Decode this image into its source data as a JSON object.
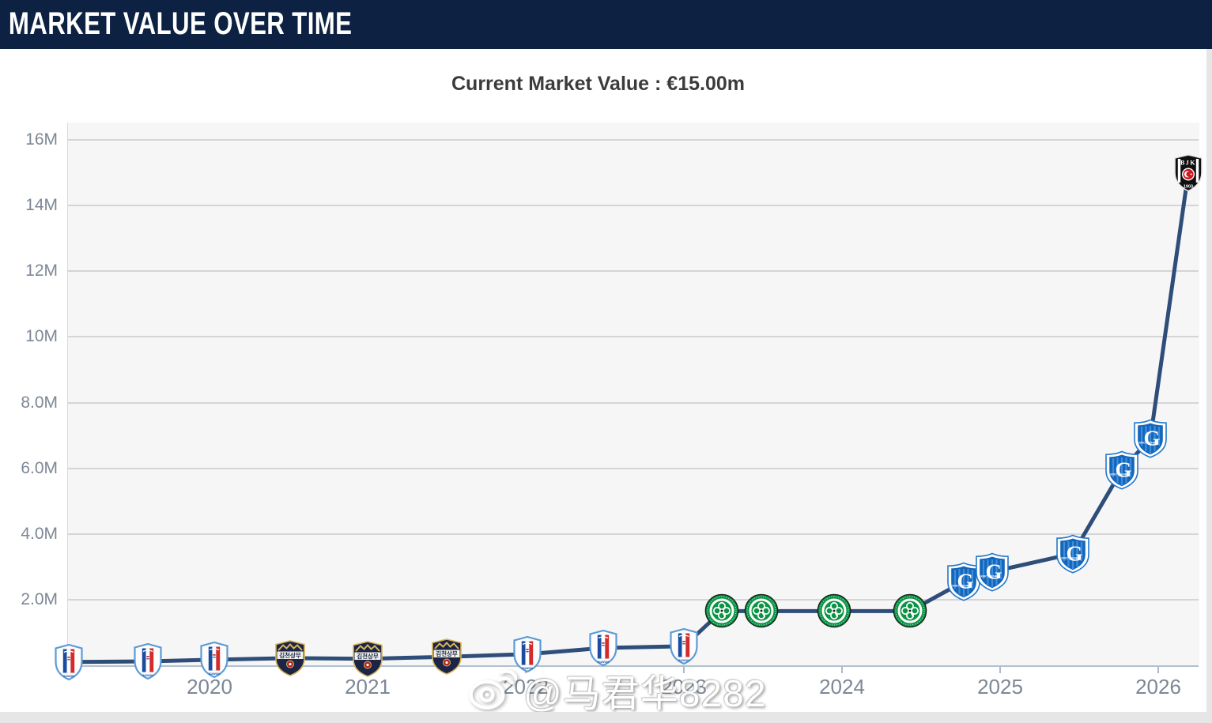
{
  "header": {
    "title": "MARKET VALUE OVER TIME",
    "bg_color": "#0d2142"
  },
  "subtitle": {
    "text": "Current Market Value : €15.00m"
  },
  "watermark": {
    "icon": "weibo-eye-icon",
    "text": "@马君华8282"
  },
  "chart_data": {
    "type": "line",
    "title": "MARKET VALUE OVER TIME",
    "subtitle": "Current Market Value : €15.00m",
    "unit": "EUR million",
    "line_color": "#2e4d78",
    "grid": "horizontal",
    "legend": "none",
    "xlabel": "",
    "ylabel": "",
    "ylim": [
      0,
      16.5
    ],
    "xlim": [
      2019.1,
      2026.26
    ],
    "y_ticks": [
      {
        "value": 16,
        "label": "16M"
      },
      {
        "value": 14,
        "label": "14M"
      },
      {
        "value": 12,
        "label": "12M"
      },
      {
        "value": 10,
        "label": "10M"
      },
      {
        "value": 8,
        "label": "8.0M"
      },
      {
        "value": 6,
        "label": "6.0M"
      },
      {
        "value": 4,
        "label": "4.0M"
      },
      {
        "value": 2,
        "label": "2.0M"
      }
    ],
    "x_ticks": [
      {
        "value": 2020,
        "label": "2020"
      },
      {
        "value": 2021,
        "label": "2021"
      },
      {
        "value": 2022,
        "label": "2022"
      },
      {
        "value": 2023,
        "label": "2023"
      },
      {
        "value": 2024,
        "label": "2024"
      },
      {
        "value": 2025,
        "label": "2025"
      },
      {
        "value": 2026,
        "label": "2026"
      }
    ],
    "clubs": {
      "suwon": "Suwon Samsung Bluewings",
      "gimcheon": "Gimcheon Sangmu FC",
      "celtic": "Celtic FC",
      "genk": "KRC Genk",
      "besiktas": "Beşiktaş JK"
    },
    "points": [
      {
        "year": 2019.11,
        "value": 0.1,
        "club": "suwon"
      },
      {
        "year": 2019.61,
        "value": 0.12,
        "club": "suwon"
      },
      {
        "year": 2020.03,
        "value": 0.17,
        "club": "suwon"
      },
      {
        "year": 2020.51,
        "value": 0.22,
        "club": "gimcheon"
      },
      {
        "year": 2021.0,
        "value": 0.2,
        "club": "gimcheon"
      },
      {
        "year": 2021.5,
        "value": 0.26,
        "club": "gimcheon"
      },
      {
        "year": 2022.01,
        "value": 0.34,
        "club": "suwon"
      },
      {
        "year": 2022.49,
        "value": 0.53,
        "club": "suwon"
      },
      {
        "year": 2023.0,
        "value": 0.58,
        "club": "suwon"
      },
      {
        "year": 2023.24,
        "value": 1.65,
        "club": "celtic"
      },
      {
        "year": 2023.49,
        "value": 1.65,
        "club": "celtic"
      },
      {
        "year": 2023.95,
        "value": 1.65,
        "club": "celtic"
      },
      {
        "year": 2024.43,
        "value": 1.65,
        "club": "celtic"
      },
      {
        "year": 2024.77,
        "value": 2.55,
        "club": "genk"
      },
      {
        "year": 2024.95,
        "value": 2.85,
        "club": "genk"
      },
      {
        "year": 2025.46,
        "value": 3.4,
        "club": "genk"
      },
      {
        "year": 2025.77,
        "value": 5.95,
        "club": "genk"
      },
      {
        "year": 2025.95,
        "value": 6.9,
        "club": "genk"
      },
      {
        "year": 2026.19,
        "value": 15.0,
        "club": "besiktas"
      }
    ]
  }
}
